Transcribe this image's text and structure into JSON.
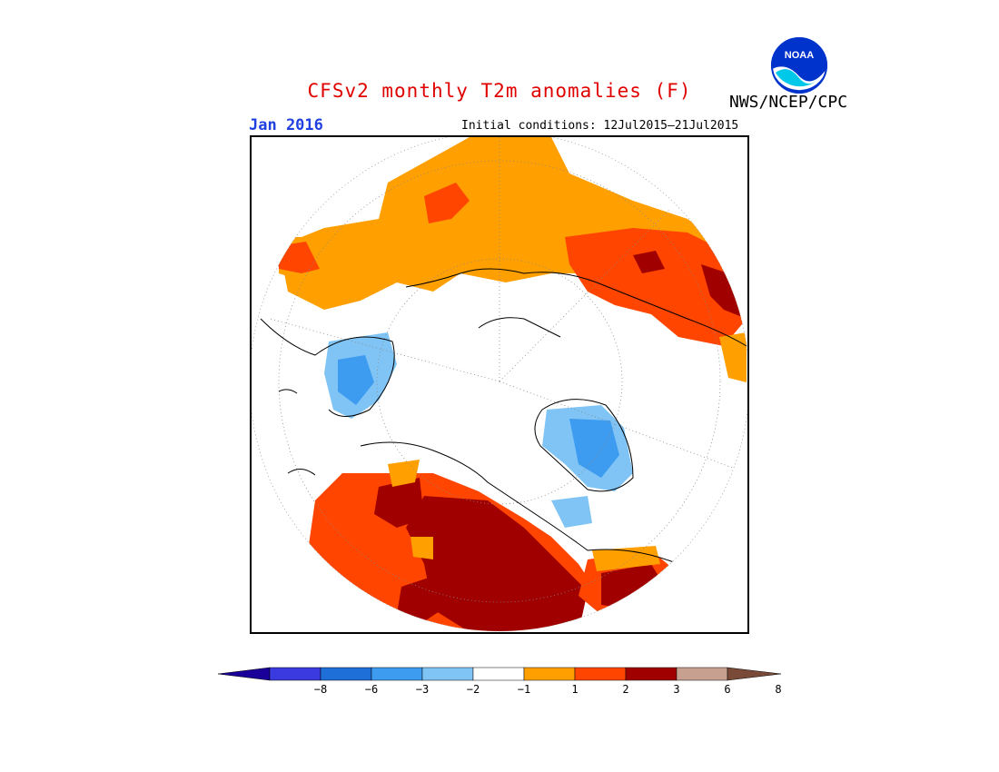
{
  "header": {
    "title": "CFSv2 monthly T2m anomalies (F)",
    "month": "Jan 2016",
    "initial_conditions": "Initial conditions: 12Jul2015–21Jul2015",
    "agency": "NWS/NCEP/CPC",
    "logo_text": "NOAA"
  },
  "colorbar": {
    "colors": [
      "#1a0099",
      "#3a3ae0",
      "#1f6fd8",
      "#3d9bf0",
      "#7fc4f5",
      "#ffffff",
      "#ff9f00",
      "#ff4500",
      "#a00000",
      "#c8a090",
      "#7a4a38"
    ],
    "ticks": [
      "−8",
      "−6",
      "−3",
      "−2",
      "−1",
      "1",
      "2",
      "3",
      "6",
      "8"
    ]
  },
  "map": {
    "projection": "north polar stereographic",
    "graticule": "dotted",
    "icon": "map-icon"
  }
}
